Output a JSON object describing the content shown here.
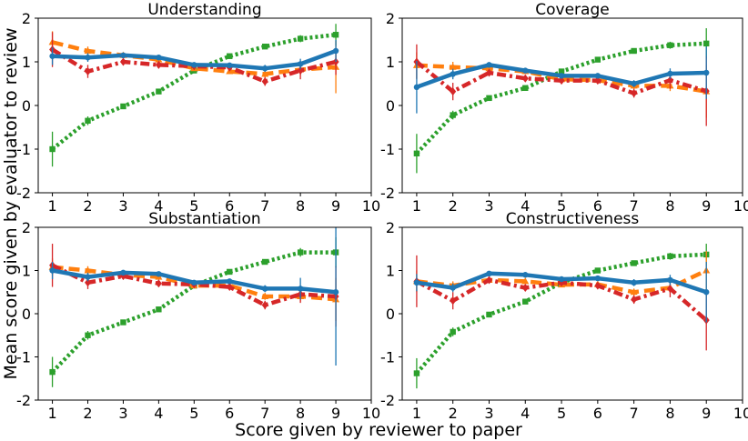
{
  "figure": {
    "xlabel": "Score given by reviewer to paper",
    "ylabel": "Mean score given by evaluator to review"
  },
  "colors": {
    "blue": "#1f77b4",
    "orange": "#ff7f0e",
    "green": "#2ca02c",
    "red": "#d62728"
  },
  "chart_data": [
    {
      "type": "line",
      "title": "Understanding",
      "xlim": [
        0.6,
        10
      ],
      "ylim": [
        -2,
        2
      ],
      "xticks": [
        1,
        2,
        3,
        4,
        5,
        6,
        7,
        8,
        9,
        10
      ],
      "yticks": [
        -2,
        -1,
        0,
        1,
        2
      ],
      "x": [
        1,
        2,
        3,
        4,
        5,
        6,
        7,
        8,
        9
      ],
      "series": [
        {
          "name": "blue",
          "values": [
            1.13,
            1.1,
            1.15,
            1.1,
            0.93,
            0.92,
            0.85,
            0.95,
            1.25
          ],
          "err": [
            0.2,
            0.1,
            0.06,
            0.05,
            0.05,
            0.05,
            0.08,
            0.12,
            0.25
          ]
        },
        {
          "name": "orange",
          "values": [
            1.45,
            1.25,
            1.15,
            1.05,
            0.85,
            0.78,
            0.72,
            0.82,
            0.88
          ],
          "err": [
            0.25,
            0.1,
            0.06,
            0.05,
            0.05,
            0.05,
            0.08,
            0.12,
            0.6
          ]
        },
        {
          "name": "red",
          "values": [
            1.28,
            0.78,
            1.0,
            0.93,
            0.9,
            0.87,
            0.55,
            0.8,
            1.0
          ],
          "err": [
            0.4,
            0.15,
            0.06,
            0.05,
            0.05,
            0.05,
            0.1,
            0.2,
            0.3
          ]
        },
        {
          "name": "green",
          "values": [
            -1.0,
            -0.35,
            -0.02,
            0.32,
            0.8,
            1.13,
            1.35,
            1.53,
            1.62
          ],
          "err": [
            0.4,
            0.1,
            0.05,
            0.05,
            0.05,
            0.05,
            0.06,
            0.08,
            0.25
          ]
        }
      ]
    },
    {
      "type": "line",
      "title": "Coverage",
      "xlim": [
        0.6,
        10
      ],
      "ylim": [
        -2,
        2
      ],
      "xticks": [
        1,
        2,
        3,
        4,
        5,
        6,
        7,
        8,
        9,
        10
      ],
      "yticks": [
        -2,
        -1,
        0,
        1,
        2
      ],
      "x": [
        1,
        2,
        3,
        4,
        5,
        6,
        7,
        8,
        9
      ],
      "series": [
        {
          "name": "blue",
          "values": [
            0.42,
            0.72,
            0.93,
            0.8,
            0.68,
            0.68,
            0.5,
            0.73,
            0.75
          ],
          "err": [
            0.6,
            0.12,
            0.06,
            0.05,
            0.05,
            0.05,
            0.08,
            0.12,
            0.6
          ]
        },
        {
          "name": "orange",
          "values": [
            0.92,
            0.88,
            0.85,
            0.78,
            0.6,
            0.58,
            0.45,
            0.45,
            0.32
          ],
          "err": [
            0.3,
            0.12,
            0.06,
            0.05,
            0.05,
            0.05,
            0.08,
            0.12,
            0.6
          ]
        },
        {
          "name": "red",
          "values": [
            1.0,
            0.32,
            0.75,
            0.62,
            0.57,
            0.57,
            0.28,
            0.58,
            0.33
          ],
          "err": [
            0.4,
            0.2,
            0.06,
            0.05,
            0.05,
            0.05,
            0.1,
            0.2,
            0.8
          ]
        },
        {
          "name": "green",
          "values": [
            -1.1,
            -0.22,
            0.17,
            0.4,
            0.78,
            1.05,
            1.25,
            1.38,
            1.42
          ],
          "err": [
            0.45,
            0.1,
            0.05,
            0.05,
            0.05,
            0.05,
            0.06,
            0.08,
            0.35
          ]
        }
      ]
    },
    {
      "type": "line",
      "title": "Substantiation",
      "xlim": [
        0.6,
        10
      ],
      "ylim": [
        -2,
        2
      ],
      "xticks": [
        1,
        2,
        3,
        4,
        5,
        6,
        7,
        8,
        9,
        10
      ],
      "yticks": [
        -2,
        -1,
        0,
        1,
        2
      ],
      "x": [
        1,
        2,
        3,
        4,
        5,
        6,
        7,
        8,
        9
      ],
      "series": [
        {
          "name": "blue",
          "values": [
            1.0,
            0.85,
            0.95,
            0.92,
            0.72,
            0.75,
            0.58,
            0.58,
            0.5
          ],
          "err": [
            0.2,
            0.1,
            0.06,
            0.05,
            0.05,
            0.05,
            0.08,
            0.25,
            1.7
          ]
        },
        {
          "name": "orange",
          "values": [
            1.08,
            1.0,
            0.9,
            0.85,
            0.65,
            0.65,
            0.4,
            0.4,
            0.33
          ],
          "err": [
            0.2,
            0.1,
            0.06,
            0.05,
            0.05,
            0.05,
            0.08,
            0.12,
            0.5
          ]
        },
        {
          "name": "red",
          "values": [
            1.12,
            0.72,
            0.87,
            0.7,
            0.68,
            0.62,
            0.2,
            0.45,
            0.4
          ],
          "err": [
            0.5,
            0.15,
            0.06,
            0.05,
            0.05,
            0.05,
            0.1,
            0.2,
            0.7
          ]
        },
        {
          "name": "green",
          "values": [
            -1.35,
            -0.5,
            -0.2,
            0.1,
            0.65,
            0.97,
            1.2,
            1.42,
            1.42
          ],
          "err": [
            0.35,
            0.1,
            0.05,
            0.05,
            0.05,
            0.05,
            0.06,
            0.1,
            0.35
          ]
        }
      ]
    },
    {
      "type": "line",
      "title": "Constructiveness",
      "xlim": [
        0.6,
        10
      ],
      "ylim": [
        -2,
        2
      ],
      "xticks": [
        1,
        2,
        3,
        4,
        5,
        6,
        7,
        8,
        9,
        10
      ],
      "yticks": [
        -2,
        -1,
        0,
        1,
        2
      ],
      "x": [
        1,
        2,
        3,
        4,
        5,
        6,
        7,
        8,
        9
      ],
      "series": [
        {
          "name": "blue",
          "values": [
            0.72,
            0.6,
            0.93,
            0.9,
            0.8,
            0.82,
            0.72,
            0.78,
            0.5
          ],
          "err": [
            0.2,
            0.1,
            0.06,
            0.05,
            0.05,
            0.05,
            0.08,
            0.12,
            0.7
          ]
        },
        {
          "name": "orange",
          "values": [
            0.75,
            0.65,
            0.78,
            0.75,
            0.67,
            0.68,
            0.5,
            0.6,
            1.0
          ],
          "err": [
            0.25,
            0.1,
            0.06,
            0.05,
            0.05,
            0.05,
            0.08,
            0.12,
            0.45
          ]
        },
        {
          "name": "red",
          "values": [
            0.75,
            0.3,
            0.78,
            0.6,
            0.72,
            0.65,
            0.33,
            0.58,
            -0.15
          ],
          "err": [
            0.6,
            0.2,
            0.06,
            0.05,
            0.05,
            0.05,
            0.1,
            0.2,
            0.7
          ]
        },
        {
          "name": "green",
          "values": [
            -1.38,
            -0.42,
            -0.02,
            0.28,
            0.72,
            1.0,
            1.17,
            1.33,
            1.37
          ],
          "err": [
            0.35,
            0.1,
            0.05,
            0.05,
            0.05,
            0.05,
            0.06,
            0.08,
            0.25
          ]
        }
      ]
    }
  ]
}
